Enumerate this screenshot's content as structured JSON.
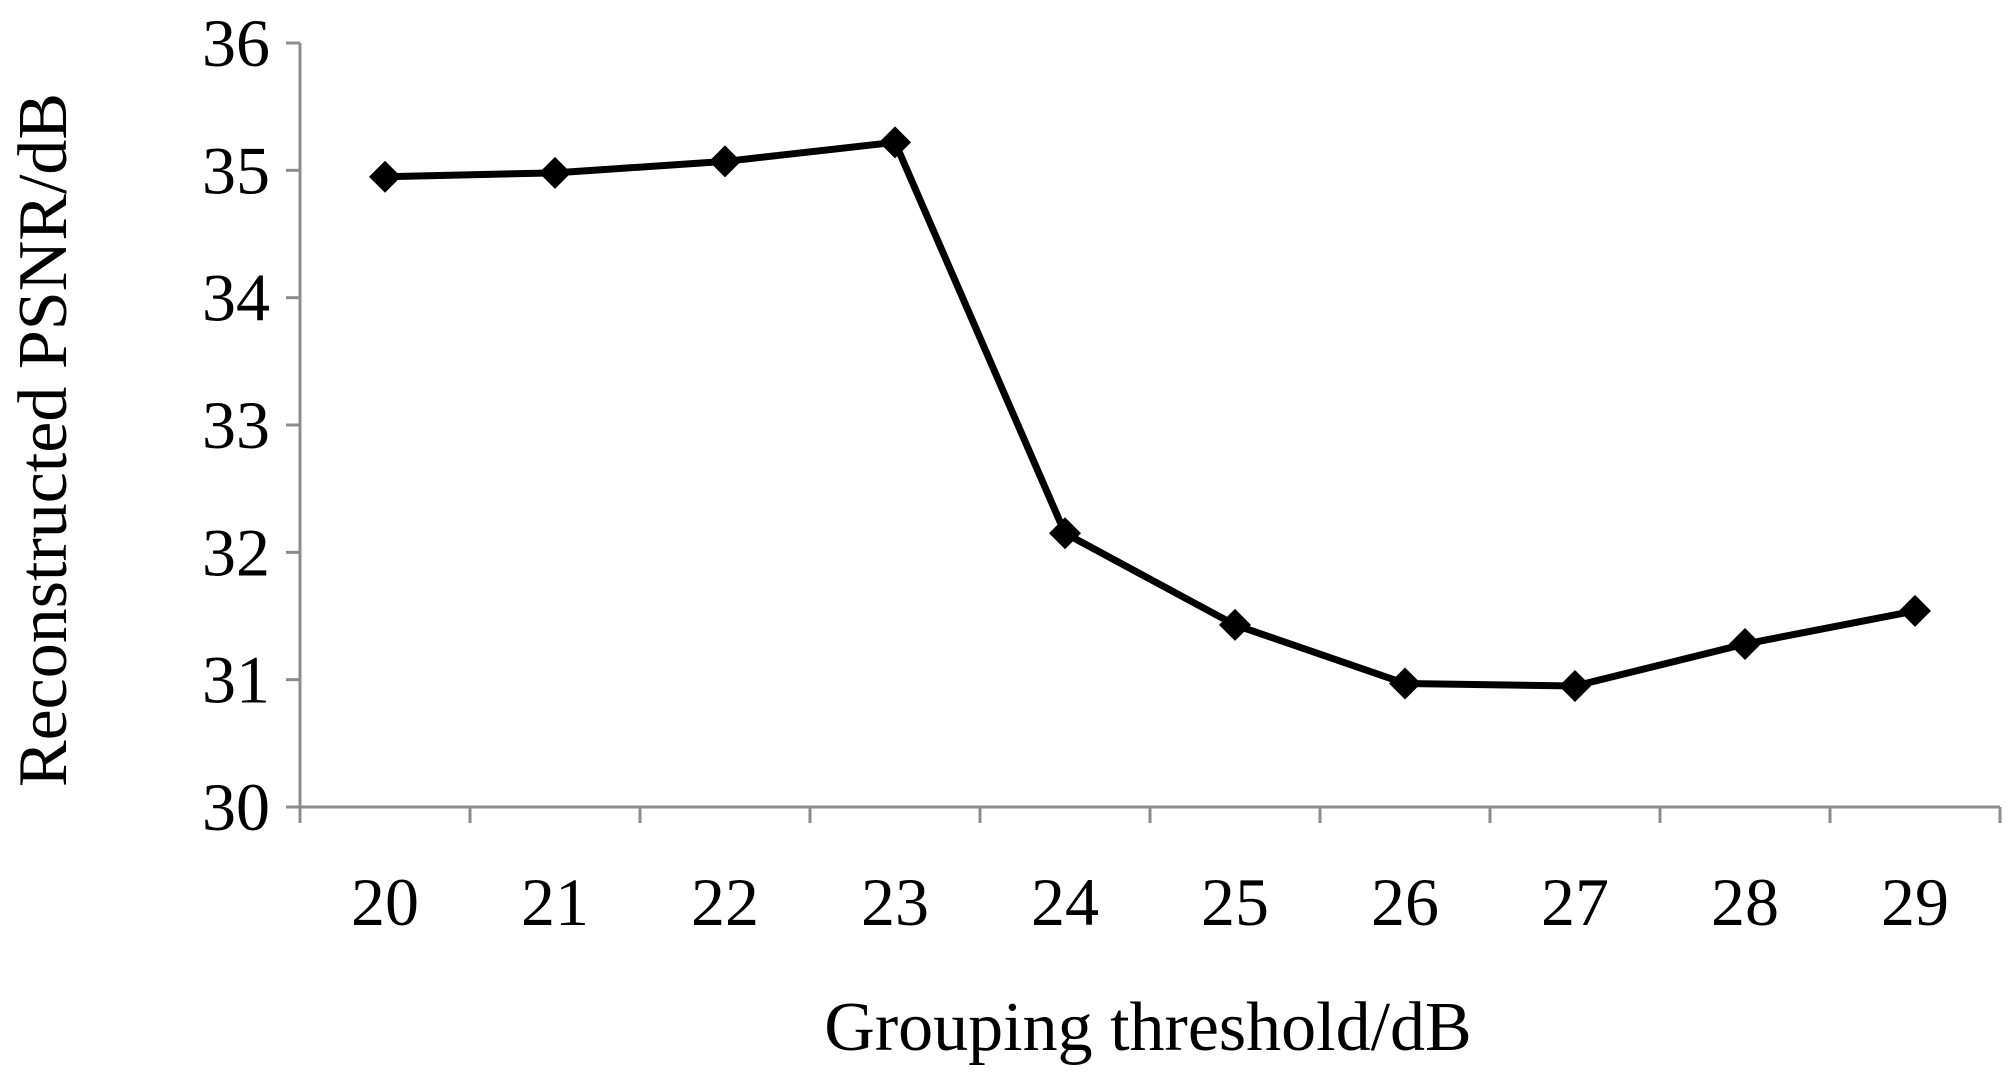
{
  "chart_data": {
    "type": "line",
    "title": "",
    "xlabel": "Grouping threshold/dB",
    "ylabel": "Reconstructed PSNR/dB",
    "categories": [
      "20",
      "21",
      "22",
      "23",
      "24",
      "25",
      "26",
      "27",
      "28",
      "29"
    ],
    "series": [
      {
        "values": [
          34.95,
          34.98,
          35.07,
          35.22,
          32.15,
          31.43,
          30.97,
          30.95,
          31.28,
          31.54
        ],
        "color": "#000000",
        "marker": "diamond"
      }
    ],
    "yticks": [
      "30",
      "31",
      "32",
      "33",
      "34",
      "35",
      "36"
    ],
    "ylim": [
      30,
      36
    ],
    "grid": false,
    "legend": "none"
  }
}
